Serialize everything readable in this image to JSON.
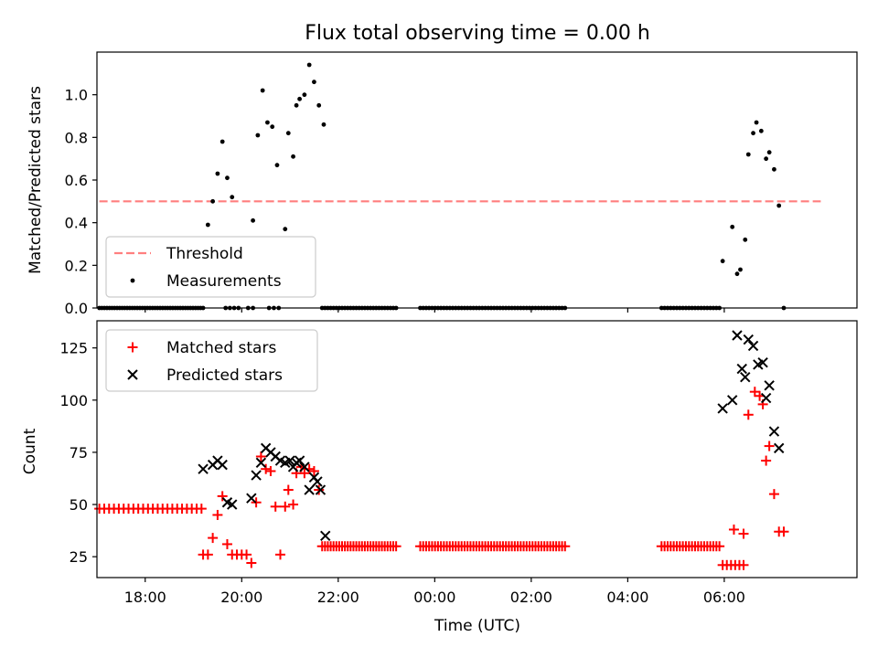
{
  "figure": {
    "title": "Flux total observing time = 0.00 h"
  },
  "chart_data": [
    {
      "type": "scatter",
      "ylabel": "Matched/Predicted stars",
      "xlabel": "",
      "xlim": [
        "17:00",
        "08:45"
      ],
      "ylim": [
        0,
        1.2
      ],
      "yticks": [
        "0.0",
        "0.2",
        "0.4",
        "0.6",
        "0.8",
        "1.0"
      ],
      "legend": {
        "placement": "lower-left",
        "entries": [
          "Threshold",
          "Measurements"
        ]
      },
      "threshold": {
        "name": "Threshold",
        "value": 0.5,
        "x_range": [
          "17:03",
          "08:00"
        ],
        "color": "#ff7f7f",
        "style": "dashed"
      },
      "series": [
        {
          "name": "Measurements",
          "color": "#000000",
          "points": [
            [
              "19:18",
              0.39
            ],
            [
              "19:24",
              0.5
            ],
            [
              "19:30",
              0.63
            ],
            [
              "19:36",
              0.78
            ],
            [
              "19:42",
              0.61
            ],
            [
              "19:48",
              0.52
            ],
            [
              "20:14",
              0.41
            ],
            [
              "20:20",
              0.81
            ],
            [
              "20:26",
              1.02
            ],
            [
              "20:32",
              0.87
            ],
            [
              "20:38",
              0.85
            ],
            [
              "20:44",
              0.67
            ],
            [
              "20:54",
              0.37
            ],
            [
              "20:58",
              0.82
            ],
            [
              "21:04",
              0.71
            ],
            [
              "21:08",
              0.95
            ],
            [
              "21:12",
              0.98
            ],
            [
              "21:18",
              1.0
            ],
            [
              "21:24",
              1.14
            ],
            [
              "21:30",
              1.06
            ],
            [
              "21:36",
              0.95
            ],
            [
              "21:42",
              0.86
            ],
            [
              "05:58",
              0.22
            ],
            [
              "06:10",
              0.38
            ],
            [
              "06:16",
              0.16
            ],
            [
              "06:20",
              0.18
            ],
            [
              "06:26",
              0.32
            ],
            [
              "06:30",
              0.72
            ],
            [
              "06:36",
              0.82
            ],
            [
              "06:40",
              0.87
            ],
            [
              "06:46",
              0.83
            ],
            [
              "06:52",
              0.7
            ],
            [
              "06:56",
              0.73
            ],
            [
              "07:02",
              0.65
            ],
            [
              "07:08",
              0.48
            ],
            [
              "07:14",
              0.0
            ]
          ],
          "zero_runs": [
            [
              "17:03",
              "19:12",
              42
            ],
            [
              "19:40",
              "19:56",
              4
            ],
            [
              "20:08",
              "20:14",
              2
            ],
            [
              "20:34",
              "20:46",
              3
            ],
            [
              "21:40",
              "23:12",
              27
            ],
            [
              "23:42",
              "02:42",
              50
            ],
            [
              "04:42",
              "05:54",
              20
            ]
          ]
        }
      ]
    },
    {
      "type": "scatter",
      "xlabel": "Time (UTC)",
      "ylabel": "Count",
      "xlim": [
        "17:00",
        "08:45"
      ],
      "ylim": [
        15,
        138
      ],
      "xticks": [
        "18:00",
        "20:00",
        "22:00",
        "00:00",
        "02:00",
        "04:00",
        "06:00"
      ],
      "yticks": [
        "25",
        "50",
        "75",
        "100",
        "125"
      ],
      "legend": {
        "placement": "upper-left",
        "entries": [
          "Matched stars",
          "Predicted stars"
        ]
      },
      "series": [
        {
          "name": "Matched stars",
          "marker": "plus",
          "color": "#ff0000",
          "points": [
            [
              "19:12",
              26
            ],
            [
              "19:18",
              26
            ],
            [
              "19:24",
              34
            ],
            [
              "19:30",
              45
            ],
            [
              "19:36",
              54
            ],
            [
              "19:42",
              31
            ],
            [
              "19:48",
              26
            ],
            [
              "19:54",
              26
            ],
            [
              "20:00",
              26
            ],
            [
              "20:06",
              26
            ],
            [
              "20:12",
              22
            ],
            [
              "20:18",
              51
            ],
            [
              "20:24",
              73
            ],
            [
              "20:30",
              67
            ],
            [
              "20:36",
              66
            ],
            [
              "20:42",
              49
            ],
            [
              "20:48",
              26
            ],
            [
              "20:54",
              49
            ],
            [
              "20:58",
              57
            ],
            [
              "21:04",
              50
            ],
            [
              "21:08",
              65
            ],
            [
              "21:14",
              68
            ],
            [
              "21:18",
              65
            ],
            [
              "21:24",
              67
            ],
            [
              "21:30",
              66
            ],
            [
              "21:36",
              57
            ],
            [
              "06:12",
              38
            ],
            [
              "06:24",
              36
            ],
            [
              "06:30",
              93
            ],
            [
              "06:38",
              104
            ],
            [
              "06:44",
              102
            ],
            [
              "06:48",
              98
            ],
            [
              "06:52",
              71
            ],
            [
              "06:56",
              78
            ],
            [
              "07:02",
              55
            ],
            [
              "07:08",
              37
            ],
            [
              "07:14",
              37
            ]
          ],
          "runs": [
            [
              "17:03",
              "19:10",
              48,
              22
            ],
            [
              "21:40",
              "23:12",
              30,
              27
            ],
            [
              "23:42",
              "02:42",
              30,
              50
            ],
            [
              "04:42",
              "05:54",
              30,
              20
            ],
            [
              "05:58",
              "06:24",
              21,
              6
            ]
          ]
        },
        {
          "name": "Predicted stars",
          "marker": "x",
          "color": "#000000",
          "points": [
            [
              "19:12",
              67
            ],
            [
              "19:24",
              69
            ],
            [
              "19:30",
              71
            ],
            [
              "19:36",
              69
            ],
            [
              "19:42",
              51
            ],
            [
              "19:48",
              50
            ],
            [
              "20:12",
              53
            ],
            [
              "20:18",
              64
            ],
            [
              "20:24",
              70
            ],
            [
              "20:30",
              77
            ],
            [
              "20:36",
              75
            ],
            [
              "20:42",
              73
            ],
            [
              "20:48",
              71
            ],
            [
              "20:54",
              70
            ],
            [
              "21:00",
              71
            ],
            [
              "21:04",
              68
            ],
            [
              "21:08",
              70
            ],
            [
              "21:12",
              71
            ],
            [
              "21:18",
              68
            ],
            [
              "21:24",
              57
            ],
            [
              "21:30",
              63
            ],
            [
              "21:34",
              61
            ],
            [
              "21:38",
              57
            ],
            [
              "21:44",
              35
            ],
            [
              "05:58",
              96
            ],
            [
              "06:10",
              100
            ],
            [
              "06:16",
              131
            ],
            [
              "06:22",
              115
            ],
            [
              "06:26",
              111
            ],
            [
              "06:30",
              129
            ],
            [
              "06:36",
              126
            ],
            [
              "06:42",
              117
            ],
            [
              "06:48",
              118
            ],
            [
              "06:52",
              101
            ],
            [
              "06:56",
              107
            ],
            [
              "07:02",
              85
            ],
            [
              "07:08",
              77
            ]
          ]
        }
      ]
    }
  ]
}
